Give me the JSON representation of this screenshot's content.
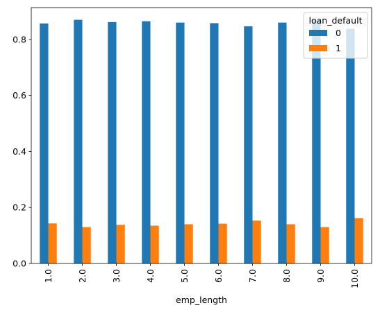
{
  "chart_data": {
    "type": "bar",
    "title": "",
    "xlabel": "emp_length",
    "ylabel": "",
    "categories": [
      "1.0",
      "2.0",
      "3.0",
      "4.0",
      "5.0",
      "6.0",
      "7.0",
      "8.0",
      "9.0",
      "10.0"
    ],
    "series": [
      {
        "name": "0",
        "color": "#1f77b4",
        "values": [
          0.857,
          0.87,
          0.862,
          0.865,
          0.86,
          0.858,
          0.847,
          0.86,
          0.87,
          0.838
        ]
      },
      {
        "name": "1",
        "color": "#ff7f0e",
        "values": [
          0.143,
          0.13,
          0.138,
          0.135,
          0.14,
          0.142,
          0.153,
          0.14,
          0.13,
          0.162
        ]
      }
    ],
    "ylim": [
      0,
      0.9135
    ],
    "yticks": [
      0.0,
      0.2,
      0.4,
      0.6,
      0.8
    ],
    "ytick_labels": [
      "0.0",
      "0.2",
      "0.4",
      "0.6",
      "0.8"
    ],
    "legend": {
      "title": "loan_default",
      "placement": "top-right"
    },
    "grid": false
  }
}
